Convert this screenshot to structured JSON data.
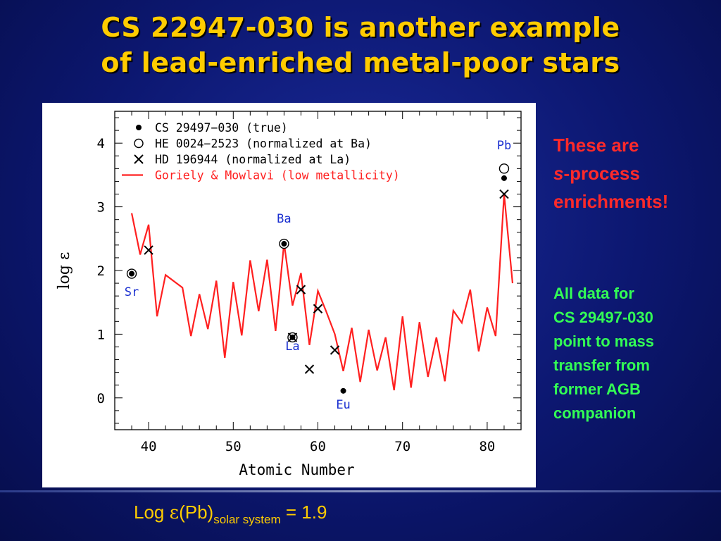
{
  "slide": {
    "title_line1": "CS 22947-030 is another example",
    "title_line2": "of lead-enriched metal-poor stars",
    "note_red": {
      "line1": "These are",
      "italic": "s",
      "line2_rest": "-process",
      "line3": "enrichments!"
    },
    "note_green": [
      "All data for",
      "CS 29497-030",
      "point to mass",
      "transfer from",
      "former AGB",
      "companion"
    ],
    "formula": {
      "prefix": "Log ",
      "epsilon": "ε",
      "element": "(Pb)",
      "subscript": "solar system",
      "equals": " =  1.9"
    }
  },
  "chart_data": {
    "type": "scatter",
    "title": "",
    "xlabel": "Atomic Number",
    "ylabel": "log ε",
    "xlim": [
      36,
      84
    ],
    "ylim": [
      -0.5,
      4.5
    ],
    "xticks": [
      40,
      50,
      60,
      70,
      80
    ],
    "yticks": [
      0,
      1,
      2,
      3,
      4
    ],
    "legend_position": "top-left",
    "element_labels": [
      {
        "text": "Sr",
        "x": 38,
        "y": 1.6
      },
      {
        "text": "Ba",
        "x": 56,
        "y": 2.75
      },
      {
        "text": "La",
        "x": 57,
        "y": 0.75
      },
      {
        "text": "Eu",
        "x": 63,
        "y": -0.17
      },
      {
        "text": "Pb",
        "x": 82,
        "y": 3.9
      }
    ],
    "series": [
      {
        "name": "CS 29497−030 (true)",
        "marker": "filled-circle",
        "x": [
          38,
          56,
          57,
          63,
          82
        ],
        "y": [
          1.95,
          2.42,
          0.95,
          0.11,
          3.45
        ]
      },
      {
        "name": "HE 0024−2523 (normalized at Ba)",
        "marker": "open-circle",
        "x": [
          38,
          56,
          57,
          82
        ],
        "y": [
          1.95,
          2.42,
          0.95,
          3.6
        ]
      },
      {
        "name": "HD 196944 (normalized at La)",
        "marker": "cross",
        "x": [
          40,
          57,
          58,
          59,
          60,
          62,
          82
        ],
        "y": [
          2.32,
          0.95,
          1.7,
          0.45,
          1.4,
          0.75,
          3.2
        ]
      },
      {
        "name": "Goriely & Mowlavi (low metallicity)",
        "marker": "line",
        "color": "#ff2020",
        "x": [
          38,
          39,
          40,
          41,
          42,
          44,
          45,
          46,
          47,
          48,
          49,
          50,
          51,
          52,
          53,
          54,
          55,
          56,
          57,
          58,
          59,
          60,
          61,
          62,
          63,
          64,
          65,
          66,
          67,
          68,
          69,
          70,
          71,
          72,
          73,
          74,
          75,
          76,
          77,
          78,
          79,
          80,
          81,
          82,
          83
        ],
        "y": [
          2.9,
          2.25,
          2.72,
          1.28,
          1.93,
          1.73,
          0.97,
          1.63,
          1.08,
          1.84,
          0.63,
          1.82,
          0.98,
          2.16,
          1.36,
          2.17,
          1.05,
          2.43,
          1.45,
          1.96,
          0.83,
          1.68,
          1.35,
          1.0,
          0.42,
          1.1,
          0.25,
          1.07,
          0.43,
          0.95,
          0.12,
          1.28,
          0.16,
          1.19,
          0.33,
          0.95,
          0.26,
          1.37,
          1.18,
          1.7,
          0.73,
          1.42,
          0.97,
          3.2,
          1.8
        ]
      }
    ]
  }
}
